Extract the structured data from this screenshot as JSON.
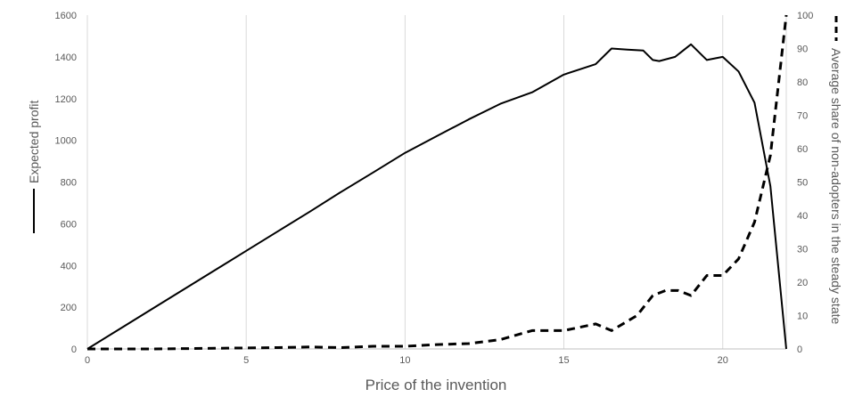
{
  "chart_data": {
    "type": "line",
    "xlabel": "Price of the invention",
    "ylabel_left": "Expected profit",
    "ylabel_right": "Average share of non-adopters in the steady state",
    "xlim": [
      0,
      22
    ],
    "ylim_left": [
      0,
      1600
    ],
    "ylim_right": [
      0,
      100
    ],
    "x_ticks": [
      0,
      5,
      10,
      15,
      20
    ],
    "y_ticks_left": [
      0,
      200,
      400,
      600,
      800,
      1000,
      1200,
      1400,
      1600
    ],
    "y_ticks_right": [
      0,
      10,
      20,
      30,
      40,
      50,
      60,
      70,
      80,
      90,
      100
    ],
    "grid": "vertical",
    "legend": "beside axis titles",
    "series": [
      {
        "name": "Expected profit",
        "axis": "left",
        "style": "solid",
        "color": "#000000",
        "x": [
          0,
          1,
          2,
          3,
          4,
          5,
          6,
          7,
          8,
          9,
          10,
          11,
          12,
          13,
          14,
          15,
          16,
          16.5,
          17,
          17.5,
          17.8,
          18,
          18.5,
          19,
          19.5,
          20,
          20.5,
          21,
          21.5,
          22
        ],
        "y": [
          0,
          94,
          188,
          282,
          376,
          470,
          564,
          658,
          754,
          846,
          940,
          1020,
          1100,
          1175,
          1230,
          1315,
          1365,
          1440,
          1435,
          1430,
          1385,
          1380,
          1400,
          1460,
          1385,
          1400,
          1330,
          1180,
          780,
          0
        ]
      },
      {
        "name": "Average share of non-adopters in the steady state",
        "axis": "right",
        "style": "dashed",
        "color": "#000000",
        "x": [
          0,
          2,
          4,
          5,
          6,
          7,
          8,
          9,
          10,
          11,
          12,
          13,
          14,
          15,
          16,
          16.5,
          17.3,
          17.8,
          18.2,
          18.6,
          19,
          19.5,
          20,
          20.5,
          21,
          21.5,
          22
        ],
        "y": [
          0,
          0,
          0.2,
          0.3,
          0.4,
          0.6,
          0.4,
          0.8,
          0.8,
          1.3,
          1.6,
          2.8,
          5.5,
          5.5,
          7.5,
          5.5,
          10,
          16,
          17.5,
          17.5,
          16,
          22,
          22,
          27,
          38,
          58,
          100
        ]
      }
    ]
  }
}
